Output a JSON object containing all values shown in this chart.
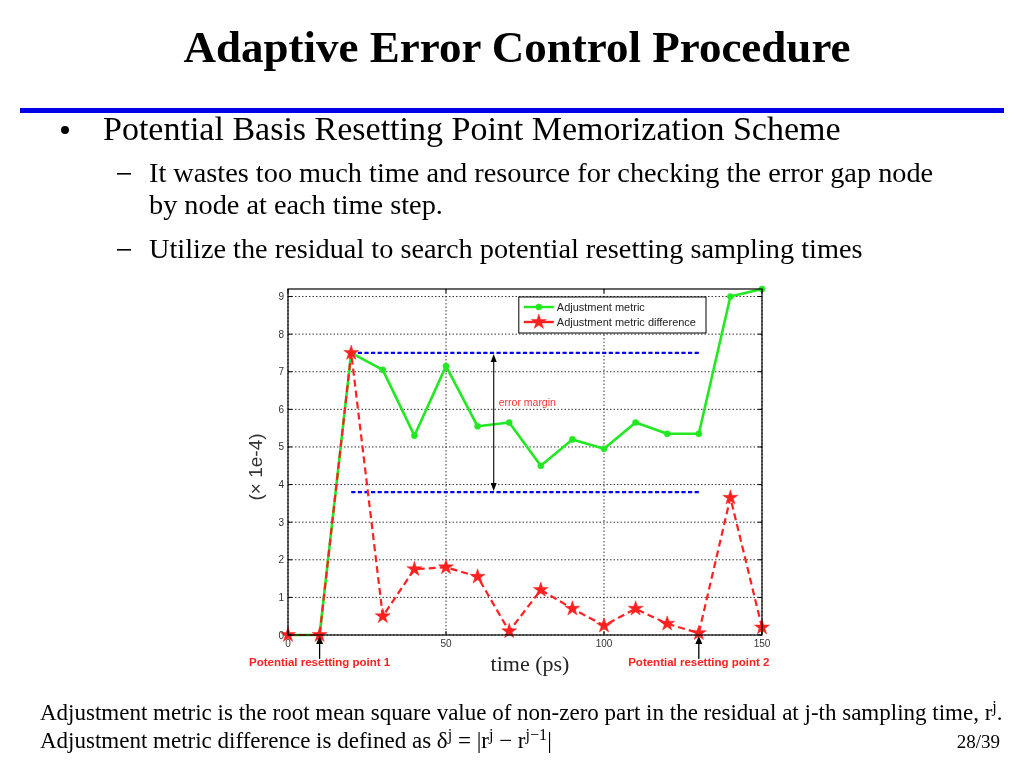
{
  "chart_data": {
    "type": "line",
    "title": "Adaptive Error Control Procedure",
    "subtitle": "Potential Basis Resetting Point Memorization Scheme",
    "xlabel": "time (ps)",
    "ylabel": "(× 1e-4)",
    "x": [
      0,
      10,
      20,
      30,
      40,
      50,
      60,
      70,
      80,
      90,
      100,
      110,
      120,
      130,
      140,
      150
    ],
    "series": [
      {
        "color": "#0000ff",
        "marker": "none",
        "line_style": "dashed",
        "values": [
          null,
          null,
          7.5,
          7.5,
          7.5,
          7.5,
          7.5,
          7.5,
          7.5,
          7.5,
          7.5,
          7.5,
          7.5,
          7.5,
          null,
          null
        ]
      },
      {
        "color": "#0000ff",
        "marker": "none",
        "line_style": "dashed",
        "values": [
          null,
          null,
          3.8,
          3.8,
          3.8,
          3.8,
          3.8,
          3.8,
          3.8,
          3.8,
          3.8,
          3.8,
          3.8,
          3.8,
          null,
          null
        ]
      },
      {
        "name": "Adjustment metric",
        "color": "#22e822",
        "marker": "circle",
        "line_style": "solid",
        "values": [
          0,
          0,
          7.5,
          7.05,
          5.3,
          7.15,
          5.55,
          5.65,
          4.5,
          5.2,
          4.95,
          5.65,
          5.35,
          5.35,
          9.0,
          9.2
        ]
      },
      {
        "name": "Adjustment metric difference",
        "color": "#ff2020",
        "marker": "star",
        "line_style": "dashed",
        "values": [
          0,
          0,
          7.5,
          0.5,
          1.75,
          1.8,
          1.55,
          0.1,
          1.2,
          0.7,
          0.25,
          0.7,
          0.3,
          0.05,
          3.65,
          0.2
        ]
      }
    ],
    "xlim": [
      0,
      150
    ],
    "xticks": [
      0,
      50,
      100,
      150
    ],
    "ylim": [
      0,
      9.2
    ],
    "yticks": [
      0,
      1,
      2,
      3,
      4,
      5,
      6,
      7,
      8,
      9
    ],
    "grid": true,
    "legend": "top right",
    "annotations": [
      "It wastes too much time and resource for checking the error gap node by node at each time step.",
      "Utilize the residual to search potential resetting sampling times",
      "Adjustment metric is the root mean square value of non-zero part in the residual at j-th sampling time, r$^{j}$.",
      "Adjustment metric difference is defined as δ$^{j}$ = |r$^{j}$ − r$^{j−1}$|",
      "28/39",
      "error margin",
      {
        "text": "Potential resetting point 1",
        "x": 10,
        "y": 0
      },
      {
        "text": "Potential resetting point 2",
        "x": 130,
        "y": 0
      }
    ]
  }
}
